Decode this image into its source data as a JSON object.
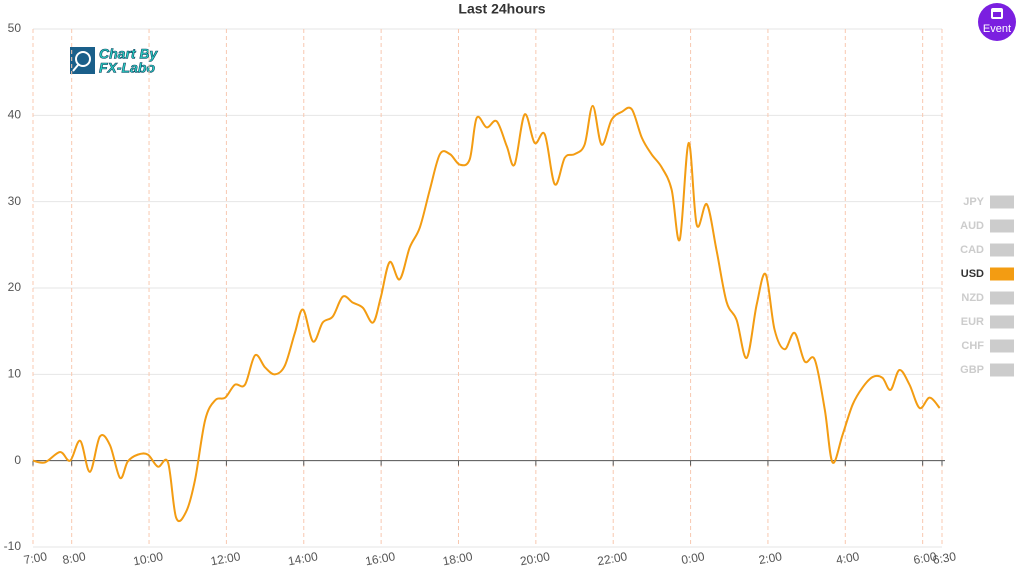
{
  "chart_data": {
    "type": "line",
    "title": "Last 24hours",
    "x": [
      7,
      7.31,
      7.7,
      7.96,
      8.22,
      8.47,
      8.73,
      8.99,
      9.25,
      9.45,
      9.71,
      9.97,
      10.23,
      10.49,
      10.7,
      10.96,
      11.19,
      11.45,
      11.71,
      11.97,
      12.22,
      12.48,
      12.74,
      13,
      13.25,
      13.51,
      13.77,
      13.98,
      14.24,
      14.49,
      14.75,
      15.01,
      15.27,
      15.53,
      15.79,
      15.99,
      16.22,
      16.48,
      16.74,
      17,
      17.26,
      17.52,
      17.78,
      18.03,
      18.29,
      18.47,
      18.73,
      18.99,
      19.25,
      19.45,
      19.71,
      19.97,
      20.23,
      20.49,
      20.75,
      21,
      21.26,
      21.47,
      21.7,
      21.96,
      22.22,
      22.48,
      22.74,
      22.99,
      23.25,
      23.51,
      23.72,
      23.95,
      24.16,
      24.42,
      24.67,
      24.93,
      25.19,
      25.45,
      25.71,
      25.94,
      26.17,
      26.43,
      26.69,
      26.95,
      27.21,
      27.47,
      27.67,
      27.93,
      28.19,
      28.45,
      28.71,
      28.96,
      29.17,
      29.4,
      29.66,
      29.92,
      30.18,
      30.44
    ],
    "series": [
      {
        "color": "#f39c12",
        "values": [
          0,
          -0.2,
          1,
          0,
          2.3,
          -1.3,
          2.8,
          1.8,
          -2,
          -0.1,
          0.7,
          0.7,
          -0.7,
          -0.2,
          -6.6,
          -5.9,
          -2.2,
          4.7,
          7,
          7.3,
          8.8,
          8.8,
          12.2,
          10.8,
          10,
          11,
          14.8,
          17.5,
          13.8,
          16,
          16.7,
          19,
          18.3,
          17.7,
          16,
          18.9,
          23,
          21,
          24.7,
          27,
          31.4,
          35.5,
          35.5,
          34.3,
          34.9,
          39.7,
          38.6,
          39.3,
          36.4,
          34.3,
          40.1,
          36.8,
          37.8,
          32,
          35.1,
          35.5,
          36.6,
          41.1,
          36.6,
          39.5,
          40.4,
          40.7,
          37.4,
          35.5,
          34,
          31.4,
          25.6,
          36.8,
          27.3,
          29.7,
          24.4,
          18.4,
          16.3,
          11.9,
          18.1,
          21.6,
          15.2,
          12.9,
          14.8,
          11.5,
          11.7,
          5.9,
          -0.2,
          3,
          6.5,
          8.5,
          9.7,
          9.6,
          8.2,
          10.5,
          8.8,
          6.1,
          7.3,
          6.1
        ]
      }
    ],
    "xlim": [
      7,
      30.5
    ],
    "xticks": [
      {
        "value": 7,
        "label": "7:00"
      },
      {
        "value": 8,
        "label": "8:00"
      },
      {
        "value": 10,
        "label": "10:00"
      },
      {
        "value": 12,
        "label": "12:00"
      },
      {
        "value": 14,
        "label": "14:00"
      },
      {
        "value": 16,
        "label": "16:00"
      },
      {
        "value": 18,
        "label": "18:00"
      },
      {
        "value": 20,
        "label": "20:00"
      },
      {
        "value": 22,
        "label": "22:00"
      },
      {
        "value": 24,
        "label": "0:00"
      },
      {
        "value": 26,
        "label": "2:00"
      },
      {
        "value": 28,
        "label": "4:00"
      },
      {
        "value": 30,
        "label": "6:00"
      },
      {
        "value": 30.5,
        "label": "6:30"
      }
    ],
    "ylim": [
      -10,
      50
    ],
    "yticks": [
      -10,
      0,
      10,
      20,
      30,
      40,
      50
    ],
    "grid": true,
    "legend": [
      {
        "name": "JPY",
        "color": "#cccccc"
      },
      {
        "name": "AUD",
        "color": "#cccccc"
      },
      {
        "name": "CAD",
        "color": "#cccccc"
      },
      {
        "name": "USD",
        "color": "#f39c12"
      },
      {
        "name": "NZD",
        "color": "#cccccc"
      },
      {
        "name": "EUR",
        "color": "#cccccc"
      },
      {
        "name": "CHF",
        "color": "#cccccc"
      },
      {
        "name": "GBP",
        "color": "#cccccc"
      }
    ]
  },
  "logo": [
    "Chart By",
    "FX-Labo"
  ],
  "event_button": "Event"
}
